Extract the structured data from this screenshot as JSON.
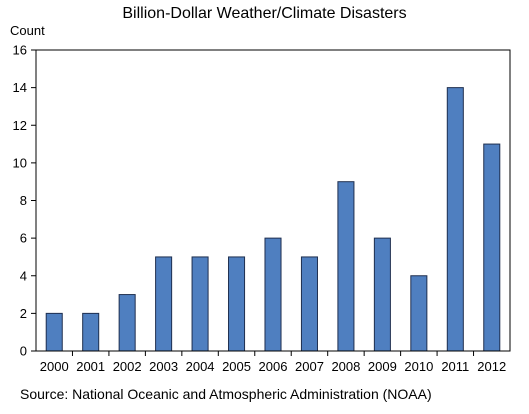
{
  "chart_data": {
    "type": "bar",
    "title": "Billion-Dollar Weather/Climate Disasters",
    "ylabel": "Count",
    "xlabel": "",
    "source": "Source: National Oceanic and Atmospheric Administration (NOAA)",
    "categories": [
      "2000",
      "2001",
      "2002",
      "2003",
      "2004",
      "2005",
      "2006",
      "2007",
      "2008",
      "2009",
      "2010",
      "2011",
      "2012"
    ],
    "values": [
      2,
      2,
      3,
      5,
      5,
      5,
      6,
      5,
      9,
      6,
      4,
      14,
      11
    ],
    "ylim": [
      0,
      16
    ],
    "yticks": [
      0,
      2,
      4,
      6,
      8,
      10,
      12,
      14,
      16
    ],
    "grid": false,
    "legend": "none",
    "colors": {
      "bar": "#4f7fc0",
      "bar_edge": "#1f2f4f"
    }
  }
}
